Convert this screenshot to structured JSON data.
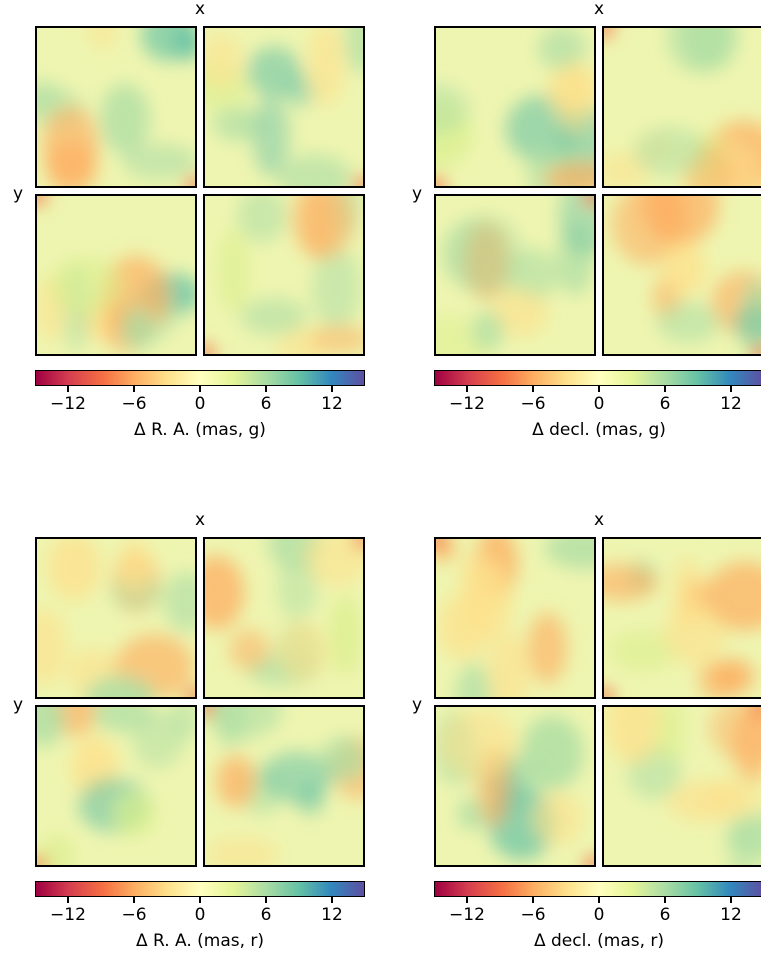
{
  "chart_data": [
    {
      "type": "heatmap",
      "axis_x_label": "x",
      "axis_y_label": "y",
      "colorbar": {
        "label": "Δ R. A. (mas, g)",
        "ticks": [
          "−12",
          "−6",
          "0",
          "6",
          "12"
        ],
        "tick_values": [
          -12,
          -6,
          0,
          6,
          12
        ],
        "range": [
          -15,
          15
        ],
        "colormap": "Spectral",
        "colors": [
          "#9e0142",
          "#d53e4f",
          "#f46d43",
          "#fdae61",
          "#fee08b",
          "#ffffbf",
          "#e6f598",
          "#abdda4",
          "#66c2a5",
          "#3288bd",
          "#5e4fa2"
        ]
      }
    },
    {
      "type": "heatmap",
      "axis_x_label": "x",
      "axis_y_label": "y",
      "colorbar": {
        "label": "Δ decl. (mas, g)",
        "ticks": [
          "−12",
          "−6",
          "0",
          "6",
          "12"
        ],
        "tick_values": [
          -12,
          -6,
          0,
          6,
          12
        ],
        "range": [
          -15,
          15
        ],
        "colormap": "Spectral"
      }
    },
    {
      "type": "heatmap",
      "axis_x_label": "x",
      "axis_y_label": "y",
      "colorbar": {
        "label": "Δ R. A. (mas, r)",
        "ticks": [
          "−12",
          "−6",
          "0",
          "6",
          "12"
        ],
        "tick_values": [
          -12,
          -6,
          0,
          6,
          12
        ],
        "range": [
          -15,
          15
        ],
        "colormap": "Spectral"
      }
    },
    {
      "type": "heatmap",
      "axis_x_label": "x",
      "axis_y_label": "y",
      "colorbar": {
        "label": "Δ decl. (mas, r)",
        "ticks": [
          "−12",
          "−6",
          "0",
          "6",
          "12"
        ],
        "tick_values": [
          -12,
          -6,
          0,
          6,
          12
        ],
        "range": [
          -15,
          15
        ],
        "colormap": "Spectral"
      }
    }
  ]
}
